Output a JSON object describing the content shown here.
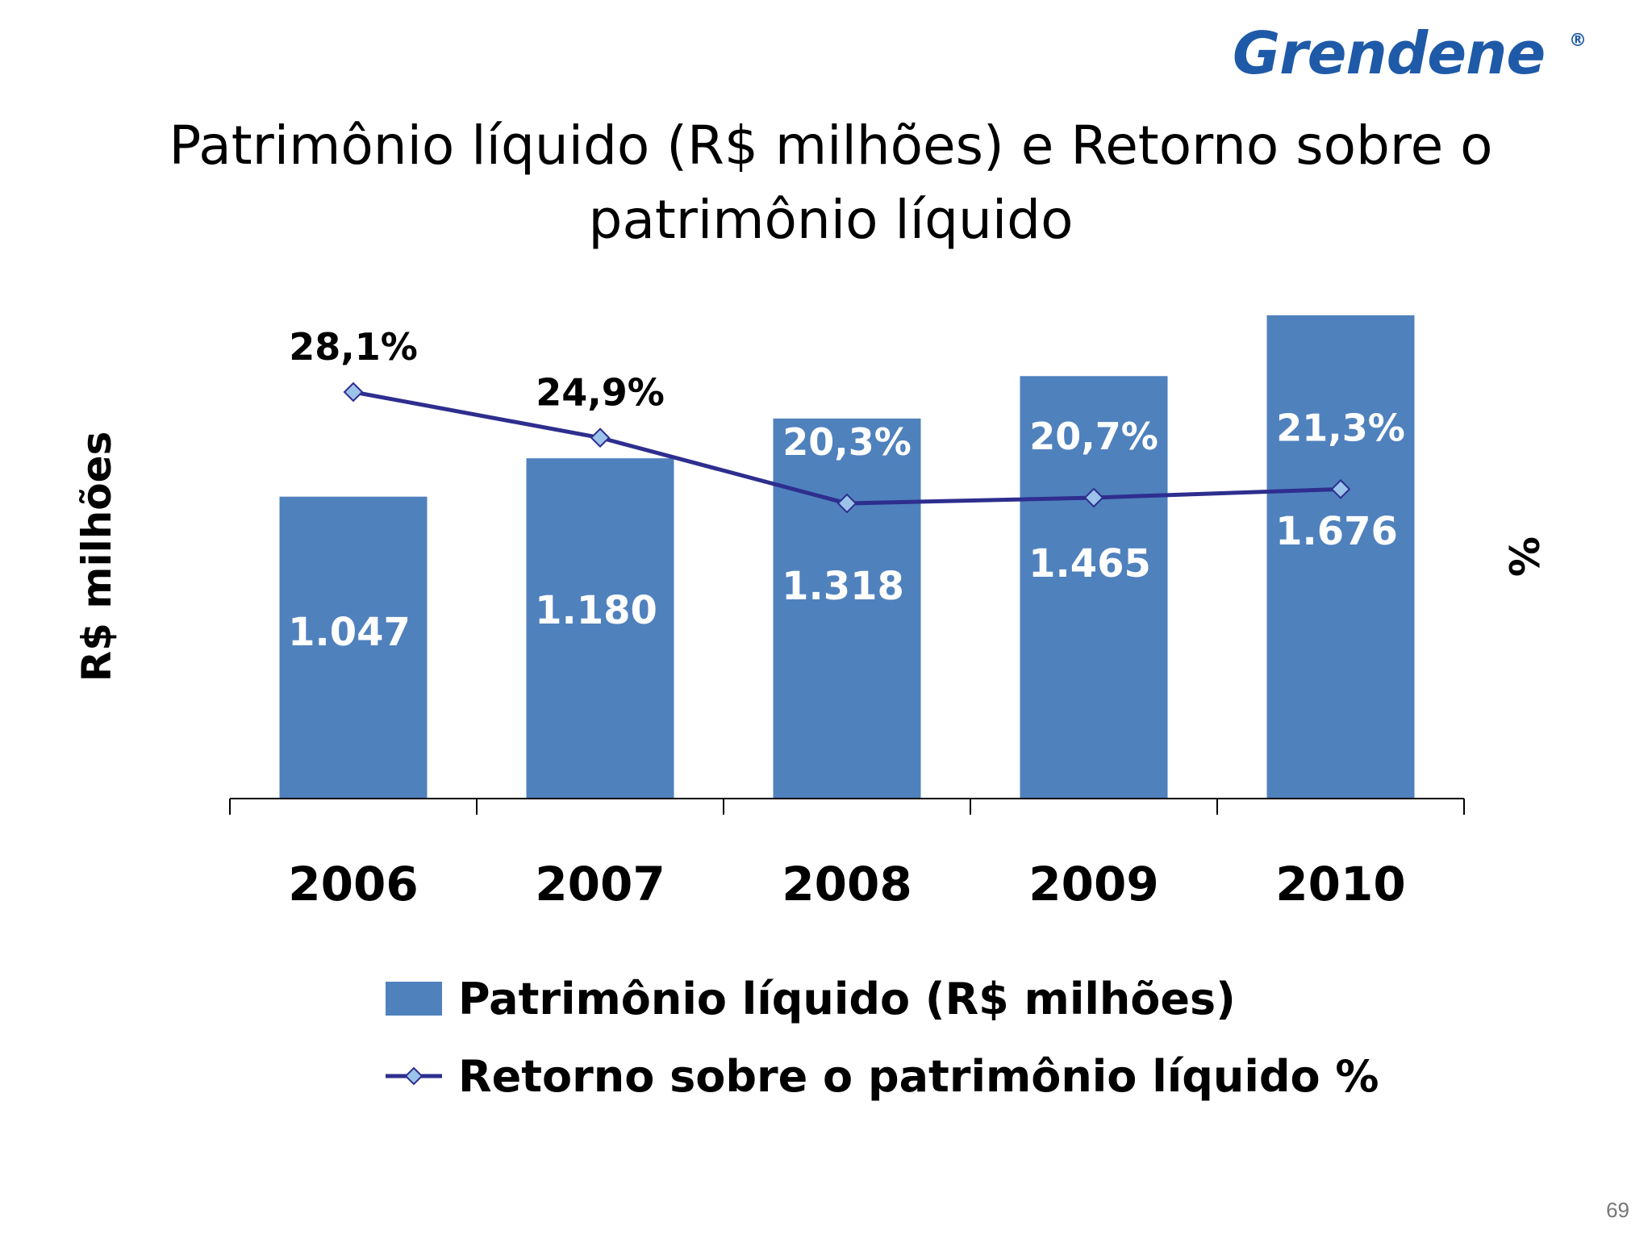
{
  "logo": {
    "text": "Grendene",
    "mark": "®"
  },
  "title": {
    "line1": "Patrimônio líquido (R$ milhões) e Retorno sobre o",
    "line2": "patrimônio líquido"
  },
  "page_number": "69",
  "colors": {
    "bar": "#4f81bd",
    "line": "#2e2e8f",
    "marker": "#9cc3ea",
    "logo": "#1e5aa8"
  },
  "chart_data": {
    "type": "bar",
    "categories": [
      "2006",
      "2007",
      "2008",
      "2009",
      "2010"
    ],
    "ylabel": "R$ milhões",
    "y2label": "%",
    "series": [
      {
        "name": "Patrimônio líquido (R$ milhões)",
        "type": "bar",
        "values": [
          1047,
          1180,
          1318,
          1465,
          1676
        ],
        "labels": [
          "1.047",
          "1.180",
          "1.318",
          "1.465",
          "1.676"
        ]
      },
      {
        "name": "Retorno sobre o patrimônio líquido %",
        "type": "line",
        "values": [
          28.1,
          24.9,
          20.3,
          20.7,
          21.3
        ],
        "labels": [
          "28,1%",
          "24,9%",
          "20,3%",
          "20,7%",
          "21,3%"
        ]
      }
    ],
    "grid": false,
    "legend_position": "bottom"
  }
}
